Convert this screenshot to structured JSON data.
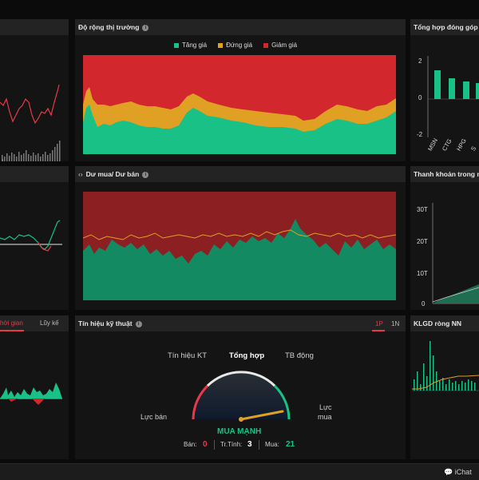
{
  "market_breadth": {
    "title": "Độ rộng thị trường",
    "legend": [
      {
        "label": "Tăng giá",
        "color": "#19c186"
      },
      {
        "label": "Đứng giá",
        "color": "#e0a024"
      },
      {
        "label": "Giảm giá",
        "color": "#d3272e"
      }
    ]
  },
  "contribution": {
    "title": "Tổng hợp đóng góp v",
    "y_ticks": [
      "2",
      "0",
      "-2"
    ],
    "categories": [
      "MSN",
      "CTG",
      "HPG",
      "S"
    ]
  },
  "buy_sell": {
    "title": "Dư mua/ Dư bán"
  },
  "liquidity": {
    "title": "Thanh khoản trong ng",
    "y_ticks": [
      "30T",
      "20T",
      "10T",
      "0"
    ]
  },
  "left_tabs": {
    "time_label": "hời gian",
    "cumulative_label": "Lũy kế"
  },
  "technical": {
    "title": "Tín hiệu kỹ thuật",
    "period_1p": "1P",
    "period_1n": "1N",
    "tabs": [
      "Tín hiệu KT",
      "Tổng hợp",
      "TB động"
    ],
    "left_label": "Lực bán",
    "right_label_1": "Lực",
    "right_label_2": "mua",
    "signal": "MUA MẠNH",
    "sell_label": "Bán:",
    "sell_value": "0",
    "neutral_label": "Tr.Tính:",
    "neutral_value": "3",
    "buy_label": "Mua:",
    "buy_value": "21"
  },
  "foreign": {
    "title": "KLGD ròng NN"
  },
  "statusbar": {
    "ichat_label": "iChat"
  },
  "colors": {
    "up": "#19c186",
    "flat": "#e0a024",
    "down": "#d3272e",
    "down_dark": "#8b1f22",
    "up_dark": "#148a63",
    "accent_red": "#e8394a"
  }
}
